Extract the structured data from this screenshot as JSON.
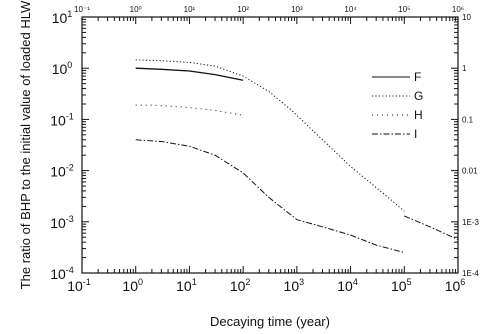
{
  "chart_data": {
    "type": "line",
    "xlabel": "Decaying time (year)",
    "ylabel": "The ratio of BHP to the initial value of loaded HLW",
    "xscale": "log",
    "yscale": "log",
    "xlim": [
      0.1,
      1000000
    ],
    "ylim": [
      0.0001,
      10
    ],
    "grid": false,
    "legend_position": "right",
    "bottom_x_ticks": [
      {
        "base": "10",
        "exp": "-1"
      },
      {
        "base": "10",
        "exp": "0"
      },
      {
        "base": "10",
        "exp": "1"
      },
      {
        "base": "10",
        "exp": "2"
      },
      {
        "base": "10",
        "exp": "3"
      },
      {
        "base": "10",
        "exp": "4"
      },
      {
        "base": "10",
        "exp": "5"
      },
      {
        "base": "10",
        "exp": "6"
      }
    ],
    "top_x_ticks": [
      "10⁻¹",
      "10⁰",
      "10¹",
      "10²",
      "10³",
      "10⁴",
      "10⁵",
      "10⁶"
    ],
    "left_y_ticks": [
      {
        "base": "10",
        "exp": "1"
      },
      {
        "base": "10",
        "exp": "0"
      },
      {
        "base": "10",
        "exp": "-1"
      },
      {
        "base": "10",
        "exp": "-2"
      },
      {
        "base": "10",
        "exp": "-3"
      },
      {
        "base": "10",
        "exp": "-4"
      }
    ],
    "right_y_ticks": [
      "10",
      "1",
      "0.1",
      "0.01",
      "1E-3",
      "1E-4"
    ],
    "series": [
      {
        "name": "F",
        "style": "solid",
        "x": [
          1,
          3,
          10,
          30,
          100
        ],
        "y": [
          1.0,
          0.95,
          0.88,
          0.75,
          0.58
        ]
      },
      {
        "name": "G",
        "style": "dotted",
        "x": [
          1,
          3,
          10,
          30,
          100,
          300,
          800,
          2000,
          10000,
          50000,
          100000
        ],
        "y": [
          1.45,
          1.4,
          1.3,
          1.1,
          0.7,
          0.35,
          0.15,
          0.06,
          0.012,
          0.003,
          0.0016
        ]
      },
      {
        "name": "H",
        "style": "sparse-dotted",
        "x": [
          1,
          2,
          5,
          10,
          30,
          100
        ],
        "y": [
          0.19,
          0.19,
          0.18,
          0.17,
          0.15,
          0.12
        ]
      },
      {
        "name": "I",
        "style": "dash-dot",
        "x": [
          1,
          3,
          10,
          30,
          100,
          300,
          1000,
          3000,
          10000,
          30000,
          100000
        ],
        "y": [
          0.04,
          0.037,
          0.03,
          0.02,
          0.009,
          0.003,
          0.0011,
          0.0008,
          0.00055,
          0.00035,
          0.00025
        ]
      },
      {
        "name": "",
        "style": "dash-dot",
        "x": [
          100000,
          300000,
          1000000
        ],
        "y": [
          0.0013,
          0.0008,
          0.00045
        ]
      }
    ]
  },
  "colors": {
    "ink": "#111111",
    "background": "#ffffff"
  }
}
